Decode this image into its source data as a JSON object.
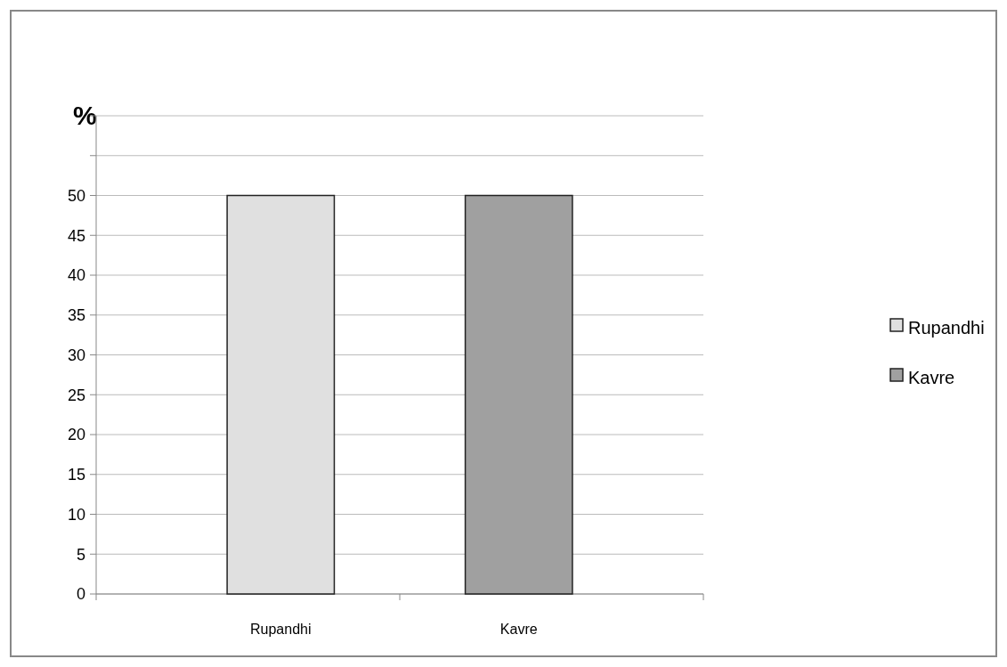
{
  "chart_data": {
    "type": "bar",
    "ylabel": "%",
    "categories": [
      "Rupandhi",
      "Kavre"
    ],
    "series": [
      {
        "name": "Rupandhi",
        "color": "#e0e0e0",
        "values": [
          50,
          null
        ]
      },
      {
        "name": "Kavre",
        "color": "#a0a0a0",
        "values": [
          null,
          50
        ]
      }
    ],
    "ylim": [
      0,
      60
    ],
    "yticks": [
      0,
      5,
      10,
      15,
      20,
      25,
      30,
      35,
      40,
      45,
      50,
      {
        "value": 55,
        "label": null
      },
      {
        "value": 60,
        "label": null
      }
    ],
    "grid": "y",
    "legend": "right"
  }
}
